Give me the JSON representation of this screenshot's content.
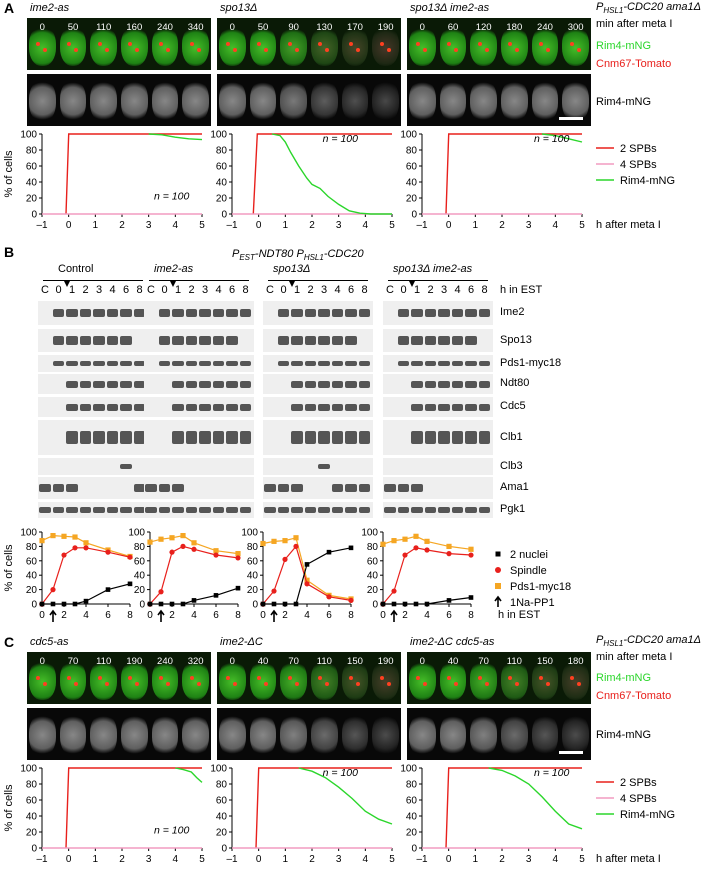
{
  "panelA": {
    "letter": "A",
    "right_label_1": "P",
    "right_label_1_sub": "HSL1",
    "right_label_1_rest": "-CDC20 ama1Δ",
    "right_label_2": "min after meta I",
    "right_label_3": "Rim4-mNG",
    "right_label_4": "Cnm67-Tomato",
    "right_label_5": "Rim4-mNG",
    "strains": [
      {
        "name": "ime2-as",
        "times": [
          "0",
          "50",
          "110",
          "160",
          "240",
          "340"
        ],
        "n": "n = 100"
      },
      {
        "name": "spo13Δ",
        "times": [
          "0",
          "50",
          "90",
          "130",
          "170",
          "190"
        ],
        "n": "n = 100"
      },
      {
        "name": "spo13Δ ime2-as",
        "times": [
          "0",
          "60",
          "120",
          "180",
          "240",
          "300"
        ],
        "n": "n = 100"
      }
    ],
    "legend": [
      "2 SPBs",
      "4 SPBs",
      "Rim4-mNG"
    ],
    "xaxis_label": "h after meta I",
    "yaxis_label": "% of cells"
  },
  "panelB": {
    "letter": "B",
    "title_p1": "P",
    "title_sub1": "EST",
    "title_mid": "-NDT80 P",
    "title_sub2": "HSL1",
    "title_end": "-CDC20",
    "strains": [
      "Control",
      "ime2-as",
      "spo13Δ",
      "spo13Δ ime2-as"
    ],
    "lanes": [
      "C",
      "0",
      "1",
      "2",
      "3",
      "4",
      "6",
      "8"
    ],
    "lanes_label": "h in EST",
    "blots": [
      "Ime2",
      "Spo13",
      "Pds1-myc18",
      "Ndt80",
      "Cdc5",
      "Clb1",
      "Clb3",
      "Ama1",
      "Pgk1"
    ],
    "legend": [
      "2 nuclei",
      "Spindle",
      "Pds1-myc18",
      "1Na-PP1"
    ],
    "xaxis_label": "h in EST",
    "yaxis_label": "% of cells"
  },
  "panelC": {
    "letter": "C",
    "strains": [
      {
        "name": "cdc5-as",
        "times": [
          "0",
          "70",
          "110",
          "190",
          "240",
          "320"
        ],
        "n": "n = 100"
      },
      {
        "name": "ime2-ΔC",
        "times": [
          "0",
          "40",
          "70",
          "110",
          "150",
          "190"
        ],
        "n": "n = 100"
      },
      {
        "name": "ime2-ΔC cdc5-as",
        "times": [
          "0",
          "40",
          "70",
          "110",
          "150",
          "180"
        ],
        "n": "n = 100"
      }
    ],
    "right_label_1": "P",
    "right_label_1_sub": "HSL1",
    "right_label_1_rest": "-CDC20 ama1Δ",
    "right_label_2": "min after meta I",
    "right_label_3": "Rim4-mNG",
    "right_label_4": "Cnm67-Tomato",
    "right_label_5": "Rim4-mNG",
    "legend": [
      "2 SPBs",
      "4 SPBs",
      "Rim4-mNG"
    ],
    "xaxis_label": "h after meta I",
    "yaxis_label": "% of cells"
  },
  "colors": {
    "red": "#e8201c",
    "pink": "#f29bc0",
    "green": "#2bd62b",
    "orange": "#f5a623",
    "black": "#000000"
  },
  "chart_data": [
    {
      "type": "line",
      "panel": "A",
      "strain": "ime2-as",
      "xlim": [
        -1,
        5
      ],
      "ylim": [
        0,
        100
      ],
      "series": [
        {
          "name": "2 SPBs",
          "x": [
            -0.1,
            0,
            5
          ],
          "y": [
            0,
            100,
            100
          ]
        },
        {
          "name": "4 SPBs",
          "x": [
            -1,
            5
          ],
          "y": [
            0,
            0
          ]
        },
        {
          "name": "Rim4-mNG",
          "x": [
            3,
            3.5,
            4,
            4.5,
            5
          ],
          "y": [
            100,
            99,
            96,
            94,
            93
          ]
        }
      ]
    },
    {
      "type": "line",
      "panel": "A",
      "strain": "spo13Δ",
      "xlim": [
        -1,
        5
      ],
      "ylim": [
        0,
        100
      ],
      "series": [
        {
          "name": "2 SPBs",
          "x": [
            -0.2,
            -0.05,
            5
          ],
          "y": [
            0,
            100,
            100
          ]
        },
        {
          "name": "4 SPBs",
          "x": [
            -1,
            5
          ],
          "y": [
            0,
            0
          ]
        },
        {
          "name": "Rim4-mNG",
          "x": [
            0.5,
            0.8,
            1.0,
            1.2,
            1.5,
            1.8,
            2.0,
            2.3,
            2.6,
            3.0,
            3.4,
            3.8,
            4.2,
            4.6,
            5.0
          ],
          "y": [
            100,
            98,
            90,
            77,
            60,
            45,
            37,
            32,
            22,
            12,
            4,
            1,
            0,
            0,
            0
          ]
        }
      ]
    },
    {
      "type": "line",
      "panel": "A",
      "strain": "spo13Δ ime2-as",
      "xlim": [
        -1,
        5
      ],
      "ylim": [
        0,
        100
      ],
      "series": [
        {
          "name": "2 SPBs",
          "x": [
            -0.1,
            0,
            5
          ],
          "y": [
            0,
            100,
            100
          ]
        },
        {
          "name": "4 SPBs",
          "x": [
            -1,
            5
          ],
          "y": [
            0,
            0
          ]
        },
        {
          "name": "Rim4-mNG",
          "x": [
            3.5,
            4,
            4.5,
            5
          ],
          "y": [
            100,
            98,
            94,
            90
          ]
        }
      ]
    },
    {
      "type": "line",
      "panel": "B",
      "strain": "Control",
      "xlim": [
        0,
        8
      ],
      "ylim": [
        0,
        100
      ],
      "series": [
        {
          "name": "2 nuclei",
          "x": [
            0,
            1,
            2,
            3,
            4,
            6,
            8
          ],
          "y": [
            0,
            0,
            0,
            0,
            4,
            20,
            28
          ]
        },
        {
          "name": "Spindle",
          "x": [
            0,
            1,
            2,
            3,
            4,
            6,
            8
          ],
          "y": [
            0,
            20,
            68,
            78,
            78,
            72,
            65
          ]
        },
        {
          "name": "Pds1-myc18",
          "x": [
            0,
            1,
            2,
            3,
            4,
            6,
            8
          ],
          "y": [
            88,
            95,
            94,
            93,
            85,
            75,
            66
          ]
        }
      ]
    },
    {
      "type": "line",
      "panel": "B",
      "strain": "ime2-as",
      "xlim": [
        0,
        8
      ],
      "ylim": [
        0,
        100
      ],
      "series": [
        {
          "name": "2 nuclei",
          "x": [
            0,
            1,
            2,
            3,
            4,
            6,
            8
          ],
          "y": [
            0,
            0,
            0,
            0,
            5,
            12,
            22
          ]
        },
        {
          "name": "Spindle",
          "x": [
            0,
            1,
            2,
            3,
            4,
            6,
            8
          ],
          "y": [
            0,
            17,
            72,
            80,
            76,
            68,
            64
          ]
        },
        {
          "name": "Pds1-myc18",
          "x": [
            0,
            1,
            2,
            3,
            4,
            6,
            8
          ],
          "y": [
            86,
            90,
            92,
            95,
            85,
            74,
            70
          ]
        }
      ]
    },
    {
      "type": "line",
      "panel": "B",
      "strain": "spo13Δ",
      "xlim": [
        0,
        8
      ],
      "ylim": [
        0,
        100
      ],
      "series": [
        {
          "name": "2 nuclei",
          "x": [
            0,
            1,
            2,
            3,
            4,
            6,
            8
          ],
          "y": [
            0,
            0,
            0,
            0,
            55,
            72,
            78
          ]
        },
        {
          "name": "Spindle",
          "x": [
            0,
            1,
            2,
            3,
            4,
            6,
            8
          ],
          "y": [
            0,
            18,
            62,
            80,
            28,
            10,
            5
          ]
        },
        {
          "name": "Pds1-myc18",
          "x": [
            0,
            1,
            2,
            3,
            4,
            6,
            8
          ],
          "y": [
            84,
            87,
            88,
            92,
            33,
            12,
            7
          ]
        }
      ]
    },
    {
      "type": "line",
      "panel": "B",
      "strain": "spo13Δ ime2-as",
      "xlim": [
        0,
        8
      ],
      "ylim": [
        0,
        100
      ],
      "series": [
        {
          "name": "2 nuclei",
          "x": [
            0,
            1,
            2,
            3,
            4,
            6,
            8
          ],
          "y": [
            0,
            0,
            0,
            0,
            0,
            5,
            9
          ]
        },
        {
          "name": "Spindle",
          "x": [
            0,
            1,
            2,
            3,
            4,
            6,
            8
          ],
          "y": [
            0,
            18,
            68,
            78,
            75,
            70,
            68
          ]
        },
        {
          "name": "Pds1-myc18",
          "x": [
            0,
            1,
            2,
            3,
            4,
            6,
            8
          ],
          "y": [
            83,
            88,
            90,
            94,
            87,
            80,
            76
          ]
        }
      ]
    },
    {
      "type": "line",
      "panel": "C",
      "strain": "cdc5-as",
      "xlim": [
        -1,
        5
      ],
      "ylim": [
        0,
        100
      ],
      "series": [
        {
          "name": "2 SPBs",
          "x": [
            -0.1,
            0,
            5
          ],
          "y": [
            0,
            100,
            100
          ]
        },
        {
          "name": "4 SPBs",
          "x": [
            -1,
            5
          ],
          "y": [
            0,
            0
          ]
        },
        {
          "name": "Rim4-mNG",
          "x": [
            4,
            4.3,
            4.6,
            4.8,
            5
          ],
          "y": [
            100,
            98,
            95,
            88,
            82
          ]
        }
      ]
    },
    {
      "type": "line",
      "panel": "C",
      "strain": "ime2-ΔC",
      "xlim": [
        -1,
        5
      ],
      "ylim": [
        0,
        100
      ],
      "series": [
        {
          "name": "2 SPBs",
          "x": [
            -0.1,
            0,
            5
          ],
          "y": [
            0,
            100,
            100
          ]
        },
        {
          "name": "4 SPBs",
          "x": [
            -1,
            5
          ],
          "y": [
            0,
            0
          ]
        },
        {
          "name": "Rim4-mNG",
          "x": [
            1.5,
            2.0,
            2.5,
            3.0,
            3.5,
            4.0,
            4.5,
            5.0
          ],
          "y": [
            100,
            96,
            88,
            76,
            62,
            46,
            36,
            30
          ]
        }
      ]
    },
    {
      "type": "line",
      "panel": "C",
      "strain": "ime2-ΔC cdc5-as",
      "xlim": [
        -1,
        5
      ],
      "ylim": [
        0,
        100
      ],
      "series": [
        {
          "name": "2 SPBs",
          "x": [
            -0.1,
            0,
            5
          ],
          "y": [
            0,
            100,
            100
          ]
        },
        {
          "name": "4 SPBs",
          "x": [
            -1,
            5
          ],
          "y": [
            0,
            0
          ]
        },
        {
          "name": "Rim4-mNG",
          "x": [
            1.5,
            2.0,
            2.5,
            3.0,
            3.5,
            4.0,
            4.5,
            5.0
          ],
          "y": [
            100,
            97,
            90,
            80,
            64,
            46,
            30,
            24
          ]
        }
      ]
    }
  ]
}
